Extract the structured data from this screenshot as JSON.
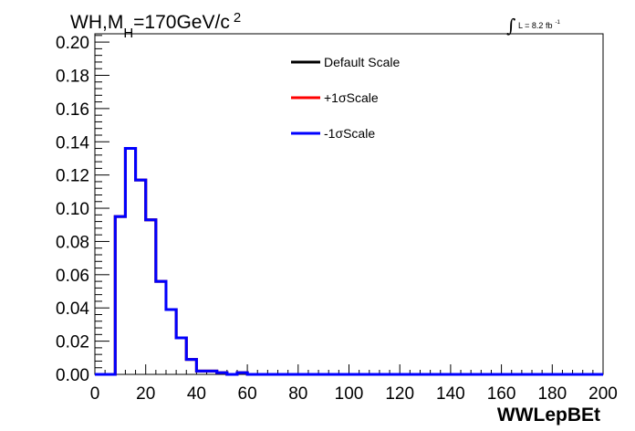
{
  "title": {
    "prefix": "WH,M",
    "subscript": "H",
    "value": "=170GeV/c",
    "superscript": "2"
  },
  "luminosity": {
    "integral": "∫",
    "text": "L = 8.2 fb",
    "superscript": "-1"
  },
  "chart_data": {
    "type": "line",
    "xlabel": "WWLepBEt",
    "ylabel": "",
    "xlim": [
      0,
      200
    ],
    "ylim": [
      0,
      0.205
    ],
    "grid": false,
    "legend_placement": "top-center",
    "x_ticks": [
      "0",
      "20",
      "40",
      "60",
      "80",
      "100",
      "120",
      "140",
      "160",
      "180",
      "200"
    ],
    "y_ticks": [
      "0.00",
      "0.02",
      "0.04",
      "0.06",
      "0.08",
      "0.10",
      "0.12",
      "0.14",
      "0.16",
      "0.18",
      "0.20"
    ],
    "bin_edges": [
      0,
      4,
      8,
      12,
      16,
      20,
      24,
      28,
      32,
      36,
      40,
      44,
      48,
      52,
      56,
      60,
      64,
      68,
      72,
      76,
      80,
      84,
      88,
      92,
      96,
      100,
      104,
      108,
      112,
      116,
      120,
      124,
      128,
      132,
      136,
      140,
      144,
      148,
      152,
      156,
      160,
      164,
      168,
      172,
      176,
      180,
      184,
      188,
      192,
      196,
      200
    ],
    "series": [
      {
        "name": "Default Scale",
        "color": "#000000",
        "values": [
          0,
          0,
          0.095,
          0.136,
          0.117,
          0.093,
          0.056,
          0.039,
          0.022,
          0.009,
          0.002,
          0.002,
          0.001,
          0,
          0.001,
          0,
          0,
          0,
          0,
          0,
          0,
          0,
          0,
          0,
          0,
          0,
          0,
          0,
          0,
          0,
          0,
          0,
          0,
          0,
          0,
          0,
          0,
          0,
          0,
          0,
          0,
          0,
          0,
          0,
          0,
          0,
          0,
          0,
          0,
          0
        ]
      },
      {
        "name": "+1σScale",
        "color": "#ff0000",
        "values": [
          0,
          0,
          0.095,
          0.136,
          0.117,
          0.093,
          0.056,
          0.039,
          0.022,
          0.009,
          0.002,
          0.002,
          0.001,
          0,
          0.001,
          0,
          0,
          0,
          0,
          0,
          0,
          0,
          0,
          0,
          0,
          0,
          0,
          0,
          0,
          0,
          0,
          0,
          0,
          0,
          0,
          0,
          0,
          0,
          0,
          0,
          0,
          0,
          0,
          0,
          0,
          0,
          0,
          0,
          0,
          0
        ]
      },
      {
        "name": "-1σScale",
        "color": "#0000ff",
        "values": [
          0,
          0,
          0.095,
          0.136,
          0.117,
          0.093,
          0.056,
          0.039,
          0.022,
          0.009,
          0.002,
          0.002,
          0.001,
          0,
          0.001,
          0,
          0,
          0,
          0,
          0,
          0,
          0,
          0,
          0,
          0,
          0,
          0,
          0,
          0,
          0,
          0,
          0,
          0,
          0,
          0,
          0,
          0,
          0,
          0,
          0,
          0,
          0,
          0,
          0,
          0,
          0,
          0,
          0,
          0,
          0
        ]
      }
    ]
  }
}
